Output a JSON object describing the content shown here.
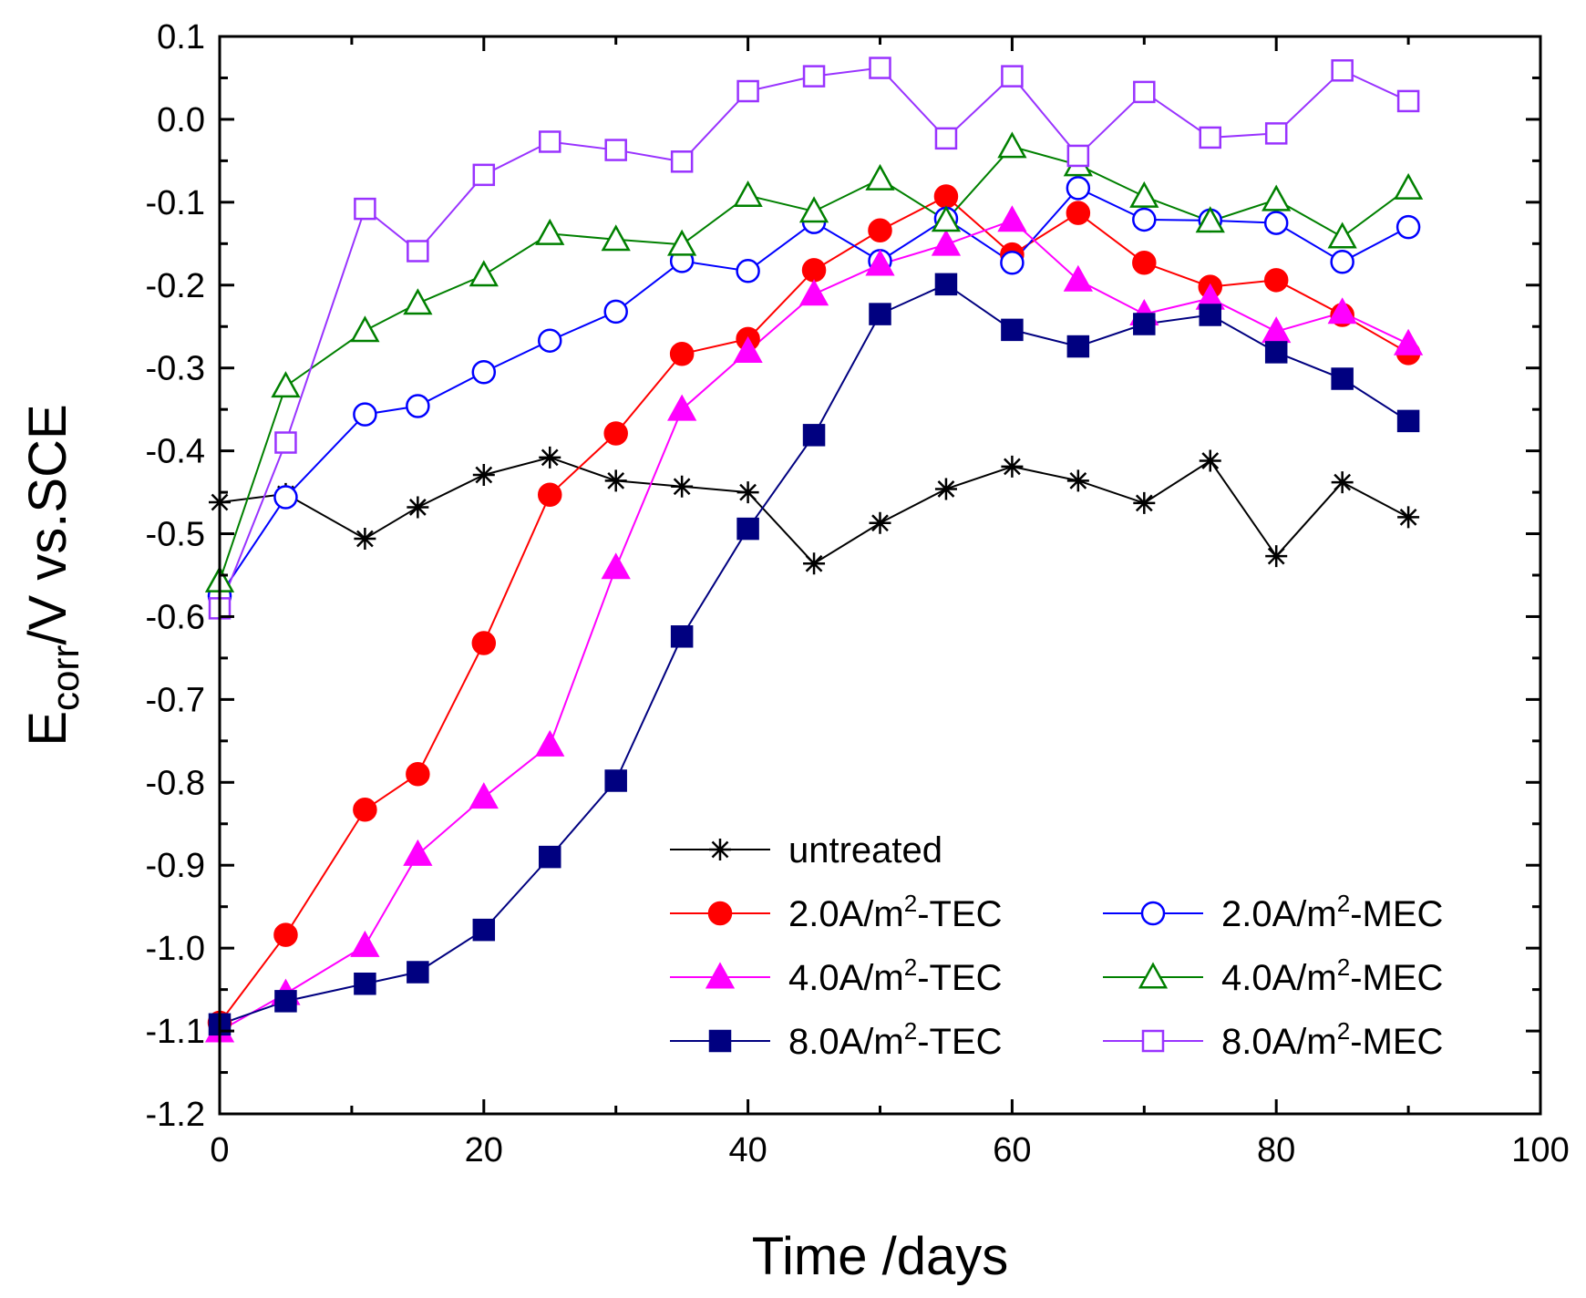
{
  "chart_data": {
    "type": "line",
    "title": "",
    "xlabel": "Time /days",
    "ylabel": {
      "main": "E",
      "sub": "corr",
      "rest": "/V vs.SCE"
    },
    "xlim": [
      0,
      100
    ],
    "ylim": [
      -1.2,
      0.1
    ],
    "x_ticks": [
      0,
      20,
      40,
      60,
      80,
      100
    ],
    "x_tick_labels": [
      "0",
      "20",
      "40",
      "60",
      "80",
      "100"
    ],
    "y_ticks": [
      0.1,
      0.0,
      -0.1,
      -0.2,
      -0.3,
      -0.4,
      -0.5,
      -0.6,
      -0.7,
      -0.8,
      -0.9,
      -1.0,
      -1.1,
      -1.2
    ],
    "y_tick_labels": [
      "0.1",
      "0.0",
      "-0.1",
      "-0.2",
      "-0.3",
      "-0.4",
      "-0.5",
      "-0.6",
      "-0.7",
      "-0.8",
      "-0.9",
      "-1.0",
      "-1.1",
      "-1.2"
    ],
    "grid": false,
    "legend_position": "bottom-right",
    "series": [
      {
        "name": "untreated",
        "legend_prefix": "untreated",
        "legend_sup": "",
        "legend_suffix": "",
        "color": "#000000",
        "marker": "asterisk",
        "filled": false,
        "x": [
          0,
          5,
          11,
          15,
          20,
          25,
          30,
          35,
          40,
          45,
          50,
          55,
          60,
          65,
          70,
          75,
          80,
          85,
          90
        ],
        "y": [
          -0.462,
          -0.452,
          -0.506,
          -0.468,
          -0.429,
          -0.408,
          -0.436,
          -0.443,
          -0.45,
          -0.536,
          -0.487,
          -0.446,
          -0.419,
          -0.436,
          -0.463,
          -0.412,
          -0.527,
          -0.438,
          -0.48
        ]
      },
      {
        "name": "2.0A/m2-TEC",
        "legend_prefix": "2.0A/m",
        "legend_sup": "2",
        "legend_suffix": "-TEC",
        "color": "#ff0000",
        "marker": "circle",
        "filled": true,
        "x": [
          0,
          5,
          11,
          15,
          20,
          25,
          30,
          35,
          40,
          45,
          50,
          55,
          60,
          65,
          70,
          75,
          80,
          85,
          90
        ],
        "y": [
          -1.09,
          -0.984,
          -0.833,
          -0.79,
          -0.632,
          -0.453,
          -0.379,
          -0.283,
          -0.265,
          -0.182,
          -0.134,
          -0.093,
          -0.163,
          -0.113,
          -0.173,
          -0.202,
          -0.194,
          -0.236,
          -0.282
        ]
      },
      {
        "name": "2.0A/m2-MEC",
        "legend_prefix": "2.0A/m",
        "legend_sup": "2",
        "legend_suffix": "-MEC",
        "color": "#0000ff",
        "marker": "circle",
        "filled": false,
        "x": [
          0,
          5,
          11,
          15,
          20,
          25,
          30,
          35,
          40,
          45,
          50,
          55,
          60,
          65,
          70,
          75,
          80,
          85,
          90
        ],
        "y": [
          -0.575,
          -0.456,
          -0.356,
          -0.346,
          -0.305,
          -0.267,
          -0.232,
          -0.171,
          -0.183,
          -0.124,
          -0.171,
          -0.12,
          -0.173,
          -0.083,
          -0.121,
          -0.122,
          -0.125,
          -0.172,
          -0.13
        ]
      },
      {
        "name": "4.0A/m2-TEC",
        "legend_prefix": "4.0A/m",
        "legend_sup": "2",
        "legend_suffix": "-TEC",
        "color": "#ff00ff",
        "marker": "triangle",
        "filled": true,
        "x": [
          0,
          5,
          11,
          15,
          20,
          25,
          30,
          35,
          40,
          45,
          50,
          55,
          60,
          65,
          70,
          75,
          80,
          85,
          90
        ],
        "y": [
          -1.1,
          -1.055,
          -0.997,
          -0.887,
          -0.818,
          -0.755,
          -0.541,
          -0.35,
          -0.28,
          -0.211,
          -0.175,
          -0.151,
          -0.122,
          -0.194,
          -0.235,
          -0.216,
          -0.256,
          -0.233,
          -0.271
        ]
      },
      {
        "name": "4.0A/m2-MEC",
        "legend_prefix": "4.0A/m",
        "legend_sup": "2",
        "legend_suffix": "-MEC",
        "color": "#008000",
        "marker": "triangle",
        "filled": false,
        "x": [
          0,
          5,
          11,
          15,
          20,
          25,
          30,
          35,
          40,
          45,
          50,
          55,
          60,
          65,
          70,
          75,
          80,
          85,
          90
        ],
        "y": [
          -0.557,
          -0.322,
          -0.255,
          -0.222,
          -0.188,
          -0.138,
          -0.145,
          -0.151,
          -0.092,
          -0.111,
          -0.072,
          -0.122,
          -0.033,
          -0.055,
          -0.093,
          -0.123,
          -0.097,
          -0.142,
          -0.083
        ]
      },
      {
        "name": "8.0A/m2-TEC",
        "legend_prefix": "8.0A/m",
        "legend_sup": "2",
        "legend_suffix": "-TEC",
        "color": "#000080",
        "marker": "square",
        "filled": true,
        "x": [
          0,
          5,
          11,
          15,
          20,
          25,
          30,
          35,
          40,
          45,
          50,
          55,
          60,
          65,
          70,
          75,
          80,
          85,
          90
        ],
        "y": [
          -1.092,
          -1.064,
          -1.043,
          -1.029,
          -0.978,
          -0.89,
          -0.798,
          -0.624,
          -0.494,
          -0.381,
          -0.235,
          -0.199,
          -0.254,
          -0.274,
          -0.247,
          -0.236,
          -0.281,
          -0.313,
          -0.364
        ]
      },
      {
        "name": "8.0A/m2-MEC",
        "legend_prefix": "8.0A/m",
        "legend_sup": "2",
        "legend_suffix": "-MEC",
        "color": "#9933ff",
        "marker": "square",
        "filled": false,
        "x": [
          0,
          5,
          11,
          15,
          20,
          25,
          30,
          35,
          40,
          45,
          50,
          55,
          60,
          65,
          70,
          75,
          80,
          85,
          90
        ],
        "y": [
          -0.59,
          -0.39,
          -0.108,
          -0.159,
          -0.067,
          -0.027,
          -0.037,
          -0.051,
          0.034,
          0.052,
          0.062,
          -0.023,
          0.052,
          -0.044,
          0.033,
          -0.022,
          -0.017,
          0.059,
          0.022
        ]
      }
    ]
  }
}
